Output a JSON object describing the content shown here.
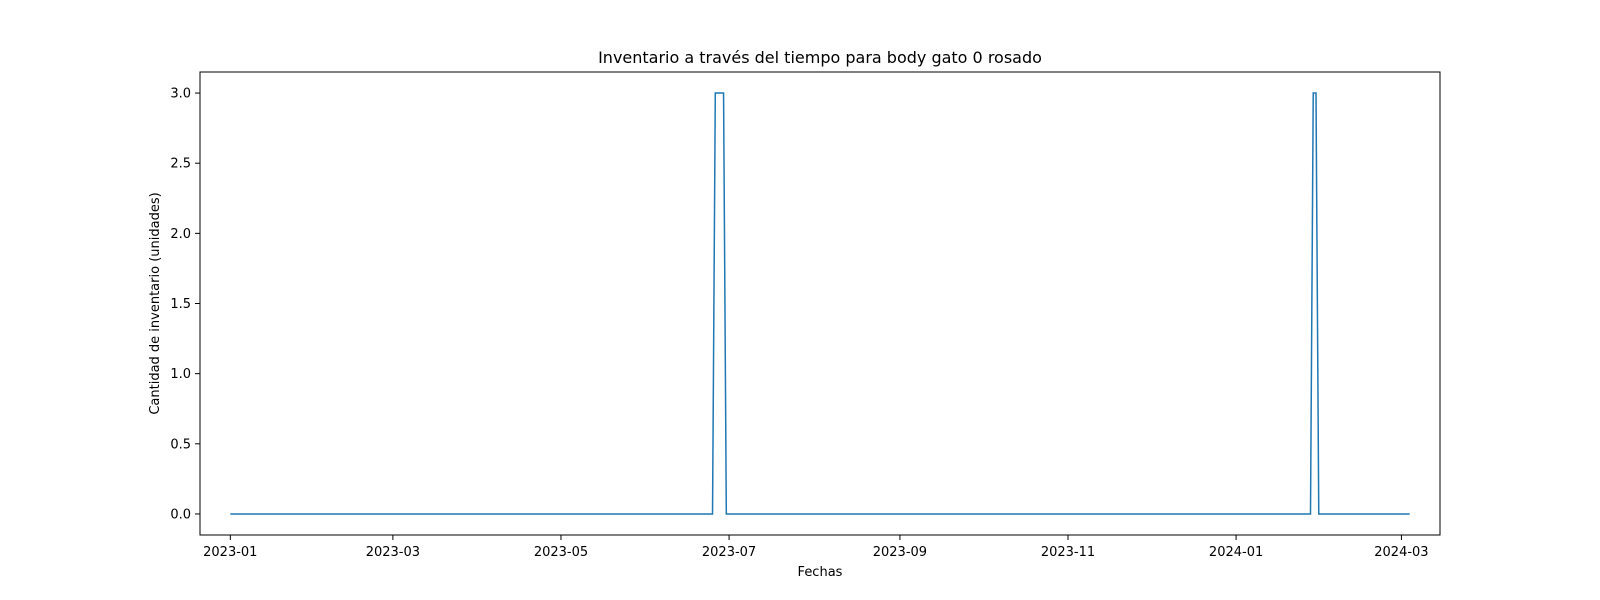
{
  "chart_data": {
    "type": "line",
    "title": "Inventario a través del tiempo para body gato 0 rosado",
    "xlabel": "Fechas",
    "ylabel": "Cantidad de inventario (unidades)",
    "x_ticks": [
      "2023-01",
      "2023-03",
      "2023-05",
      "2023-07",
      "2023-09",
      "2023-11",
      "2024-01",
      "2024-03"
    ],
    "y_ticks": [
      "0.0",
      "0.5",
      "1.0",
      "1.5",
      "2.0",
      "2.5",
      "3.0"
    ],
    "xlim": [
      "2022-12-21",
      "2024-03-15"
    ],
    "ylim": [
      -0.15,
      3.15
    ],
    "grid": false,
    "legend": "none",
    "series": [
      {
        "color": "#1f77b4",
        "points": [
          [
            "2023-01-01",
            0
          ],
          [
            "2023-06-25",
            0
          ],
          [
            "2023-06-26",
            3
          ],
          [
            "2023-06-29",
            3
          ],
          [
            "2023-06-30",
            0
          ],
          [
            "2024-01-28",
            0
          ],
          [
            "2024-01-29",
            3
          ],
          [
            "2024-01-30",
            3
          ],
          [
            "2024-01-31",
            0
          ],
          [
            "2024-03-04",
            0
          ]
        ]
      }
    ]
  }
}
